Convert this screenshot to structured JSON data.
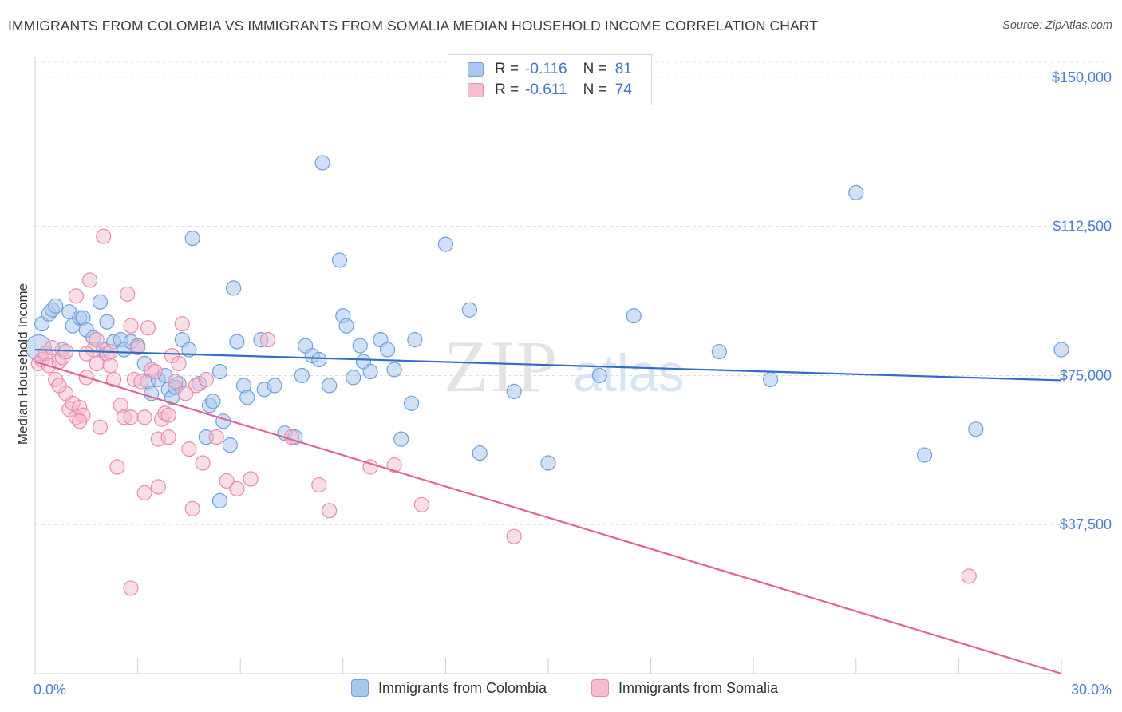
{
  "title": "IMMIGRANTS FROM COLOMBIA VS IMMIGRANTS FROM SOMALIA MEDIAN HOUSEHOLD INCOME CORRELATION CHART",
  "source": "Source: ZipAtlas.com",
  "watermark": {
    "zip": "ZIP",
    "atlas": "atlas"
  },
  "colors": {
    "colombia_fill": "#a9c8f0",
    "colombia_stroke": "#6f9fdc",
    "colombia_line": "#2f6ec7",
    "somalia_fill": "#f6bcd0",
    "somalia_stroke": "#e98aab",
    "somalia_line": "#e0648f",
    "tick_text": "#4a7fd0"
  },
  "legend": {
    "rows": [
      {
        "r_label": "R =",
        "r_value": "-0.116",
        "n_label": "N =",
        "n_value": "81"
      },
      {
        "r_label": "R =",
        "r_value": "-0.611",
        "n_label": "N =",
        "n_value": "74"
      }
    ]
  },
  "chart_data": {
    "type": "scatter",
    "ylabel": "Median Household Income",
    "xlim": [
      0,
      30
    ],
    "ylim": [
      0,
      155000
    ],
    "x_tick_labels": [
      "0.0%",
      "30.0%"
    ],
    "y_ticks": [
      37500,
      75000,
      112500,
      150000
    ],
    "y_tick_labels": [
      "$37,500",
      "$75,000",
      "$112,500",
      "$150,000"
    ],
    "grid": "horizontal dashed",
    "legend_position": "top-center",
    "series": [
      {
        "name": "Immigrants from Colombia",
        "trend": {
          "x": [
            0,
            30
          ],
          "y": [
            81500,
            73800
          ]
        },
        "points": [
          [
            0.1,
            82000
          ],
          [
            0.2,
            88000
          ],
          [
            0.4,
            90500
          ],
          [
            0.5,
            91500
          ],
          [
            0.6,
            92500
          ],
          [
            0.8,
            81500
          ],
          [
            1.0,
            91000
          ],
          [
            1.1,
            87500
          ],
          [
            1.3,
            89500
          ],
          [
            1.4,
            89500
          ],
          [
            1.5,
            86500
          ],
          [
            1.7,
            84500
          ],
          [
            1.9,
            93500
          ],
          [
            2.0,
            81500
          ],
          [
            2.1,
            88500
          ],
          [
            2.3,
            83500
          ],
          [
            2.5,
            84000
          ],
          [
            2.6,
            81500
          ],
          [
            2.8,
            83500
          ],
          [
            3.0,
            82500
          ],
          [
            3.2,
            78000
          ],
          [
            3.3,
            73500
          ],
          [
            3.4,
            70500
          ],
          [
            3.6,
            74000
          ],
          [
            3.8,
            75000
          ],
          [
            3.9,
            71500
          ],
          [
            4.0,
            69500
          ],
          [
            4.2,
            73000
          ],
          [
            4.3,
            84000
          ],
          [
            4.5,
            81500
          ],
          [
            4.6,
            109500
          ],
          [
            4.8,
            73000
          ],
          [
            5.0,
            59500
          ],
          [
            5.1,
            67500
          ],
          [
            5.2,
            68500
          ],
          [
            5.4,
            76000
          ],
          [
            5.5,
            63500
          ],
          [
            5.7,
            57500
          ],
          [
            5.8,
            97000
          ],
          [
            5.9,
            83500
          ],
          [
            6.1,
            72500
          ],
          [
            6.2,
            69500
          ],
          [
            6.6,
            84000
          ],
          [
            6.7,
            71500
          ],
          [
            7.0,
            72500
          ],
          [
            7.3,
            60500
          ],
          [
            7.6,
            59500
          ],
          [
            7.8,
            75000
          ],
          [
            7.9,
            82500
          ],
          [
            8.1,
            80000
          ],
          [
            8.3,
            79000
          ],
          [
            8.4,
            128500
          ],
          [
            8.6,
            72500
          ],
          [
            8.9,
            104000
          ],
          [
            9.0,
            90000
          ],
          [
            9.1,
            87500
          ],
          [
            9.3,
            74500
          ],
          [
            9.5,
            82500
          ],
          [
            9.6,
            78500
          ],
          [
            9.8,
            76000
          ],
          [
            10.1,
            84000
          ],
          [
            10.3,
            81500
          ],
          [
            10.5,
            76500
          ],
          [
            10.7,
            59000
          ],
          [
            11.0,
            68000
          ],
          [
            11.1,
            84000
          ],
          [
            12.0,
            108000
          ],
          [
            12.7,
            91500
          ],
          [
            13.0,
            55500
          ],
          [
            14.0,
            71000
          ],
          [
            15.0,
            53000
          ],
          [
            16.5,
            75000
          ],
          [
            17.5,
            90000
          ],
          [
            20.0,
            81000
          ],
          [
            21.5,
            74000
          ],
          [
            24.0,
            121000
          ],
          [
            26.0,
            55000
          ],
          [
            27.5,
            61500
          ],
          [
            30.0,
            81500
          ],
          [
            5.4,
            43500
          ],
          [
            4.1,
            72000
          ]
        ]
      },
      {
        "name": "Immigrants from Somalia",
        "trend": {
          "x": [
            0,
            30
          ],
          "y": [
            78500,
            0
          ]
        },
        "points": [
          [
            0.1,
            78000
          ],
          [
            0.2,
            79000
          ],
          [
            0.3,
            80500
          ],
          [
            0.4,
            77500
          ],
          [
            0.5,
            82000
          ],
          [
            0.6,
            74000
          ],
          [
            0.7,
            78500
          ],
          [
            0.8,
            79500
          ],
          [
            0.9,
            70500
          ],
          [
            1.0,
            66500
          ],
          [
            1.1,
            68000
          ],
          [
            1.2,
            64500
          ],
          [
            1.3,
            67000
          ],
          [
            1.4,
            65000
          ],
          [
            1.5,
            74500
          ],
          [
            1.6,
            99000
          ],
          [
            1.7,
            81500
          ],
          [
            1.8,
            78000
          ],
          [
            1.9,
            62000
          ],
          [
            2.0,
            110000
          ],
          [
            2.1,
            80500
          ],
          [
            2.2,
            81000
          ],
          [
            2.3,
            74000
          ],
          [
            2.4,
            52000
          ],
          [
            2.5,
            67500
          ],
          [
            2.6,
            64500
          ],
          [
            2.7,
            95500
          ],
          [
            2.8,
            87500
          ],
          [
            2.9,
            74000
          ],
          [
            3.0,
            82000
          ],
          [
            3.1,
            73500
          ],
          [
            3.2,
            64500
          ],
          [
            3.3,
            87000
          ],
          [
            3.4,
            76500
          ],
          [
            3.5,
            76000
          ],
          [
            3.6,
            59000
          ],
          [
            3.7,
            64000
          ],
          [
            3.8,
            65500
          ],
          [
            3.9,
            59500
          ],
          [
            4.0,
            80000
          ],
          [
            4.1,
            73500
          ],
          [
            4.2,
            78000
          ],
          [
            4.3,
            88000
          ],
          [
            4.5,
            56500
          ],
          [
            4.6,
            41500
          ],
          [
            4.7,
            72500
          ],
          [
            5.0,
            74000
          ],
          [
            5.3,
            59500
          ],
          [
            5.6,
            48500
          ],
          [
            5.9,
            46500
          ],
          [
            6.3,
            49000
          ],
          [
            6.8,
            84000
          ],
          [
            7.5,
            59500
          ],
          [
            8.3,
            47500
          ],
          [
            8.6,
            41000
          ],
          [
            9.8,
            52000
          ],
          [
            10.5,
            52500
          ],
          [
            11.3,
            42500
          ],
          [
            14.0,
            34500
          ],
          [
            27.3,
            24500
          ],
          [
            3.9,
            65000
          ],
          [
            0.9,
            81000
          ],
          [
            2.8,
            64500
          ],
          [
            2.2,
            77500
          ],
          [
            3.6,
            47000
          ],
          [
            4.4,
            70500
          ],
          [
            1.8,
            84000
          ],
          [
            1.2,
            95000
          ],
          [
            2.8,
            21500
          ],
          [
            3.2,
            45500
          ],
          [
            0.7,
            72500
          ],
          [
            1.5,
            80500
          ],
          [
            1.3,
            63500
          ],
          [
            4.9,
            53000
          ]
        ]
      }
    ]
  }
}
